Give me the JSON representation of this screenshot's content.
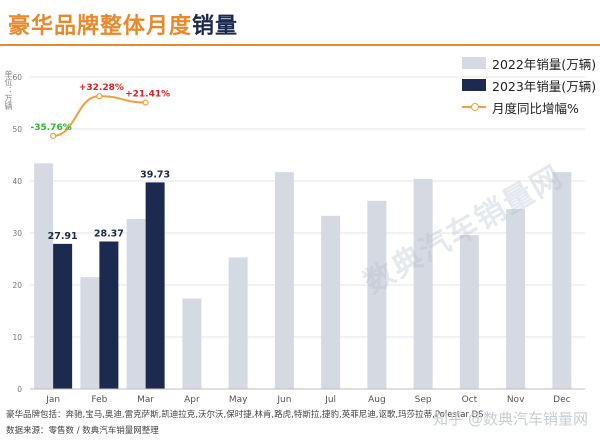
{
  "title_part1": "豪华品牌整体月度",
  "title_part2": "销量",
  "unit_label": "单位：万辆",
  "footer_brands": "豪华品牌包括：奔驰,宝马,奥迪,雷克萨斯,凯迪拉克,沃尔沃,保时捷,林肯,路虎,特斯拉,捷豹,英菲尼迪,讴歌,玛莎拉蒂,Polestar,DS",
  "footer_source": "数据来源：零售数  /  数典汽车销量网整理",
  "watermark_bottom": "知乎 @数典汽车销量网",
  "watermark_center": "数典汽车销量网",
  "colors": {
    "series2022": "#D5D9E2",
    "series2023": "#1B2A4E",
    "growth_line": "#F0A040",
    "positive": "#E02020",
    "negative": "#2DB82D"
  },
  "chart_data": {
    "type": "bar",
    "categories": [
      "Jan",
      "Feb",
      "Mar",
      "Apr",
      "May",
      "Jun",
      "Jul",
      "Aug",
      "Sep",
      "Oct",
      "Nov",
      "Dec"
    ],
    "ylim": [
      0,
      60
    ],
    "yticks": [
      0,
      10,
      20,
      30,
      40,
      50,
      60
    ],
    "grid": true,
    "legend_position": "top-right",
    "series": [
      {
        "name": "2022年销量(万辆)",
        "values": [
          43.4,
          21.5,
          32.7,
          17.4,
          25.3,
          41.7,
          33.3,
          36.2,
          40.4,
          29.6,
          34.6,
          41.7
        ]
      },
      {
        "name": "2023年销量(万辆)",
        "values": [
          27.91,
          28.37,
          39.73,
          null,
          null,
          null,
          null,
          null,
          null,
          null,
          null,
          null
        ]
      }
    ],
    "value_labels": [
      "27.91",
      "28.37",
      "39.73"
    ],
    "growth": {
      "name": "月度同比增幅%",
      "values": [
        -35.76,
        32.28,
        21.41
      ],
      "labels": [
        "-35.76%",
        "+32.28%",
        "+21.41%"
      ]
    }
  }
}
